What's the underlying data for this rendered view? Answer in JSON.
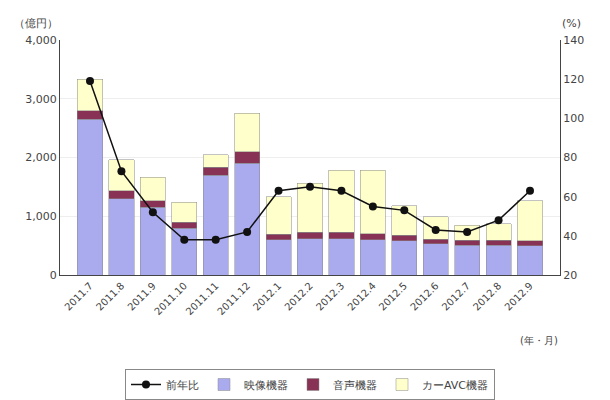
{
  "chart_data": {
    "type": "bar",
    "stacked": true,
    "categories": [
      "2011.7",
      "2011.8",
      "2011.9",
      "2011.10",
      "2011.11",
      "2011.12",
      "2012.1",
      "2012.2",
      "2012.3",
      "2012.4",
      "2012.5",
      "2012.6",
      "2012.7",
      "2012.8",
      "2012.9"
    ],
    "series": [
      {
        "name": "映像機器",
        "color": "#aaaaee",
        "values": [
          2650,
          1300,
          1150,
          800,
          1700,
          1900,
          600,
          620,
          620,
          600,
          580,
          530,
          510,
          510,
          500
        ]
      },
      {
        "name": "音声機器",
        "color": "#883355",
        "values": [
          150,
          130,
          110,
          100,
          130,
          200,
          90,
          110,
          110,
          100,
          95,
          80,
          80,
          80,
          85
        ]
      },
      {
        "name": "カーAVC機器",
        "color": "#ffffcc",
        "values": [
          530,
          530,
          400,
          340,
          220,
          650,
          640,
          830,
          1050,
          1080,
          500,
          380,
          260,
          280,
          680
        ]
      },
      {
        "name": "前年比",
        "type": "line",
        "axis": "y2",
        "color": "#111111",
        "marker": "circle",
        "values": [
          119,
          73,
          52,
          38,
          38,
          42,
          63,
          65,
          63,
          55,
          53,
          43,
          42,
          48,
          63
        ]
      }
    ],
    "ylabel": "（億円）",
    "y2label": "(%)",
    "xlabel": "(年・月)",
    "ylim": [
      0,
      4000
    ],
    "yticks": [
      0,
      {
        "value": 1000,
        "label": "1,000"
      },
      {
        "value": 2000,
        "label": "2,000"
      },
      {
        "value": 3000,
        "label": "3,000"
      },
      {
        "value": 4000,
        "label": "4,000"
      }
    ],
    "y2lim": [
      20,
      140
    ],
    "y2ticks": [
      20,
      40,
      60,
      80,
      100,
      120,
      140
    ],
    "grid": true,
    "legend": "bottom"
  }
}
